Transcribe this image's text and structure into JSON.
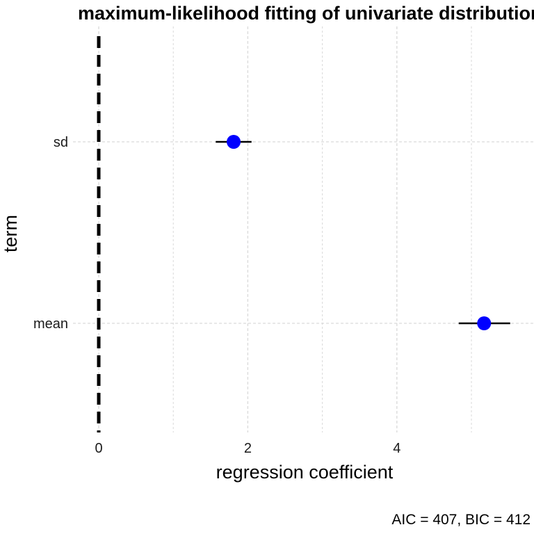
{
  "chart_data": {
    "type": "scatter",
    "title": "maximum-likelihood fitting of univariate distributions",
    "xlabel": "regression coefficient",
    "ylabel": "term",
    "caption": "AIC = 407, BIC = 412",
    "categories": [
      "mean",
      "sd"
    ],
    "points": [
      {
        "term": "sd",
        "estimate": 1.81,
        "conf_low": 1.57,
        "conf_high": 2.05
      },
      {
        "term": "mean",
        "estimate": 5.17,
        "conf_low": 4.83,
        "conf_high": 5.52
      }
    ],
    "xlim": [
      -0.2,
      5.8
    ],
    "xticks": [
      0,
      2,
      4
    ],
    "xticks_minor": [
      1,
      3,
      5
    ],
    "vline": 0,
    "grid": true,
    "point_color": "#0000ff",
    "line_color": "#000000",
    "grid_color": "#d9d9d9"
  }
}
